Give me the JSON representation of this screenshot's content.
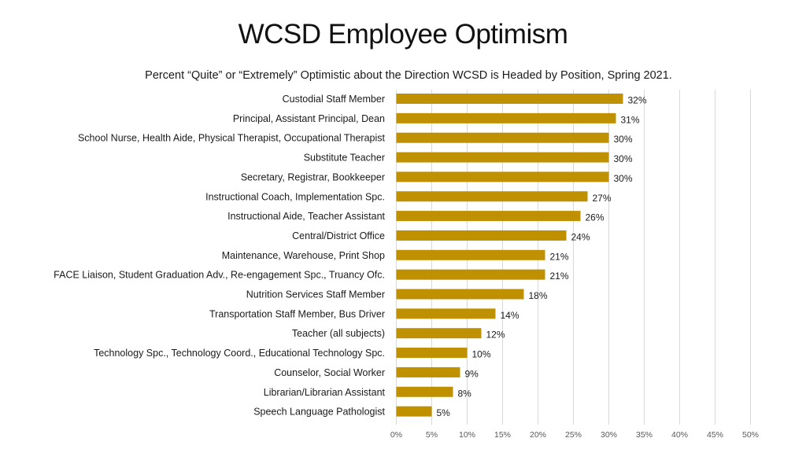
{
  "chart_data": {
    "type": "bar",
    "orientation": "horizontal",
    "title": "WCSD Employee Optimism",
    "subtitle": "Percent “Quite” or “Extremely” Optimistic about the Direction WCSD is Headed by Position, Spring 2021.",
    "categories": [
      "Custodial Staff Member",
      "Principal, Assistant Principal, Dean",
      "School Nurse, Health Aide, Physical Therapist, Occupational Therapist",
      "Substitute Teacher",
      "Secretary, Registrar, Bookkeeper",
      "Instructional Coach, Implementation Spc.",
      "Instructional Aide, Teacher Assistant",
      "Central/District Office",
      "Maintenance, Warehouse, Print Shop",
      "FACE Liaison, Student Graduation Adv., Re-engagement Spc., Truancy Ofc.",
      "Nutrition Services Staff Member",
      "Transportation Staff Member, Bus Driver",
      "Teacher (all subjects)",
      "Technology Spc., Technology Coord., Educational Technology Spc.",
      "Counselor, Social Worker",
      "Librarian/Librarian Assistant",
      "Speech Language Pathologist"
    ],
    "values": [
      32,
      31,
      30,
      30,
      30,
      27,
      26,
      24,
      21,
      21,
      18,
      14,
      12,
      10,
      9,
      8,
      5
    ],
    "value_labels": [
      "32%",
      "31%",
      "30%",
      "30%",
      "30%",
      "27%",
      "26%",
      "24%",
      "21%",
      "21%",
      "18%",
      "14%",
      "12%",
      "10%",
      "9%",
      "8%",
      "5%"
    ],
    "x_ticks": [
      0,
      5,
      10,
      15,
      20,
      25,
      30,
      35,
      40,
      45,
      50
    ],
    "x_tick_labels": [
      "0%",
      "5%",
      "10%",
      "15%",
      "20%",
      "25%",
      "30%",
      "35%",
      "40%",
      "45%",
      "50%"
    ],
    "xlim": [
      0,
      50
    ],
    "xlabel": "",
    "ylabel": "",
    "grid": true,
    "legend": "none",
    "bar_color": "#BF9000"
  }
}
